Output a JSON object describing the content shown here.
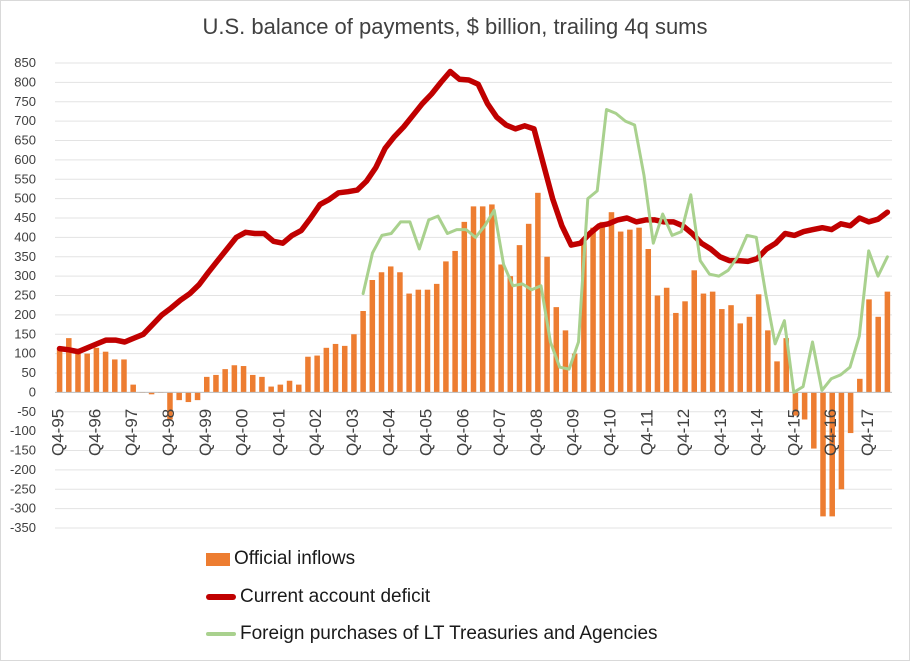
{
  "chart_data": {
    "type": "bar+line",
    "title": "U.S. balance of payments, $ billion, trailing 4q sums",
    "ylim": [
      -350,
      850
    ],
    "yticks": [
      850,
      800,
      750,
      700,
      650,
      600,
      550,
      500,
      450,
      400,
      350,
      300,
      250,
      200,
      150,
      100,
      50,
      0,
      -50,
      -100,
      -150,
      -200,
      -250,
      -300,
      -350
    ],
    "xtick_labels": [
      "Q4-95",
      "Q4-96",
      "Q4-97",
      "Q4-98",
      "Q4-99",
      "Q4-00",
      "Q4-01",
      "Q4-02",
      "Q4-03",
      "Q4-04",
      "Q4-05",
      "Q4-06",
      "Q4-07",
      "Q4-08",
      "Q4-09",
      "Q4-10",
      "Q4-11",
      "Q4-12",
      "Q4-13",
      "Q4-14",
      "Q4-15",
      "Q4-16",
      "Q4-17"
    ],
    "x_start": "Q4-95",
    "x_end": "Q4-17",
    "series": [
      {
        "name": "Official inflows",
        "type": "bar",
        "color": "#ed7d31",
        "values": [
          115,
          140,
          110,
          100,
          115,
          105,
          85,
          85,
          20,
          0,
          -5,
          0,
          -70,
          -20,
          -25,
          -20,
          40,
          45,
          60,
          70,
          68,
          45,
          40,
          15,
          20,
          30,
          20,
          92,
          95,
          115,
          125,
          120,
          150,
          210,
          290,
          310,
          325,
          310,
          255,
          265,
          265,
          280,
          338,
          365,
          440,
          480,
          480,
          485,
          330,
          300,
          380,
          435,
          515,
          350,
          220,
          160,
          100,
          390,
          425,
          440,
          465,
          415,
          420,
          425,
          370,
          250,
          270,
          205,
          235,
          315,
          255,
          260,
          215,
          225,
          178,
          195,
          253,
          160,
          80,
          140,
          -60,
          -70,
          -145,
          -320,
          -320,
          -250,
          -105,
          35,
          240,
          195,
          260
        ]
      },
      {
        "name": "Current account deficit",
        "type": "line",
        "color": "#c00000",
        "values": [
          113,
          110,
          105,
          115,
          125,
          135,
          135,
          130,
          140,
          150,
          175,
          200,
          218,
          238,
          255,
          278,
          310,
          340,
          370,
          400,
          413,
          410,
          410,
          390,
          385,
          405,
          418,
          450,
          485,
          498,
          515,
          518,
          522,
          545,
          580,
          630,
          660,
          685,
          715,
          745,
          770,
          800,
          828,
          808,
          806,
          795,
          745,
          710,
          690,
          680,
          688,
          680,
          590,
          500,
          430,
          380,
          385,
          410,
          430,
          435,
          445,
          450,
          440,
          445,
          445,
          440,
          440,
          430,
          410,
          385,
          370,
          350,
          340,
          340,
          338,
          345,
          370,
          385,
          410,
          405,
          415,
          420,
          425,
          420,
          435,
          430,
          450,
          440,
          447,
          465
        ]
      },
      {
        "name": "Foreign purchases of LT Treasuries and Agencies",
        "type": "line",
        "color": "#a9d18e",
        "values": [
          255,
          360,
          405,
          410,
          440,
          440,
          370,
          445,
          455,
          410,
          420,
          420,
          400,
          430,
          470,
          330,
          275,
          280,
          265,
          275,
          130,
          65,
          60,
          130,
          500,
          520,
          730,
          720,
          700,
          690,
          560,
          385,
          460,
          405,
          415,
          510,
          340,
          305,
          300,
          315,
          350,
          405,
          400,
          255,
          125,
          185,
          0,
          15,
          130,
          5,
          35,
          45,
          65,
          145,
          365,
          300,
          350
        ]
      }
    ],
    "legend": [
      "Official inflows",
      "Current account deficit",
      "Foreign purchases of LT Treasuries and Agencies"
    ],
    "legend_position": "bottom"
  }
}
